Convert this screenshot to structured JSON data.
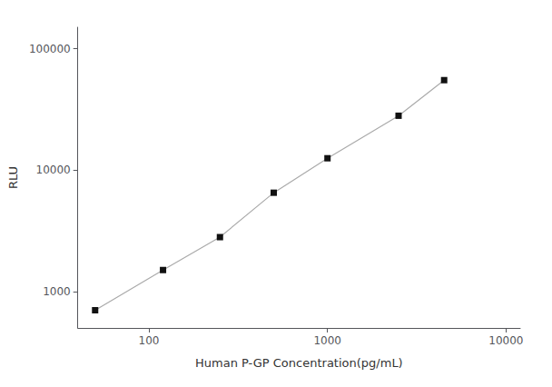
{
  "chart_data": {
    "type": "line",
    "x": [
      50,
      120,
      250,
      500,
      1000,
      2500,
      4500
    ],
    "values": [
      700,
      1500,
      2800,
      6500,
      12500,
      28000,
      55000
    ],
    "xlabel": "Human P-GP Concentration(pg/mL)",
    "ylabel": "RLU",
    "xlim": [
      40,
      12000
    ],
    "ylim": [
      500,
      150000
    ],
    "xticks": [
      100,
      1000,
      10000
    ],
    "yticks": [
      1000,
      10000,
      100000
    ],
    "log": true,
    "grid": false,
    "color": "#aaaaaa",
    "colors": [
      "#111111",
      "#111111",
      "#111111",
      "#111111",
      "#111111",
      "#111111",
      "#111111"
    ],
    "marker": "square"
  }
}
